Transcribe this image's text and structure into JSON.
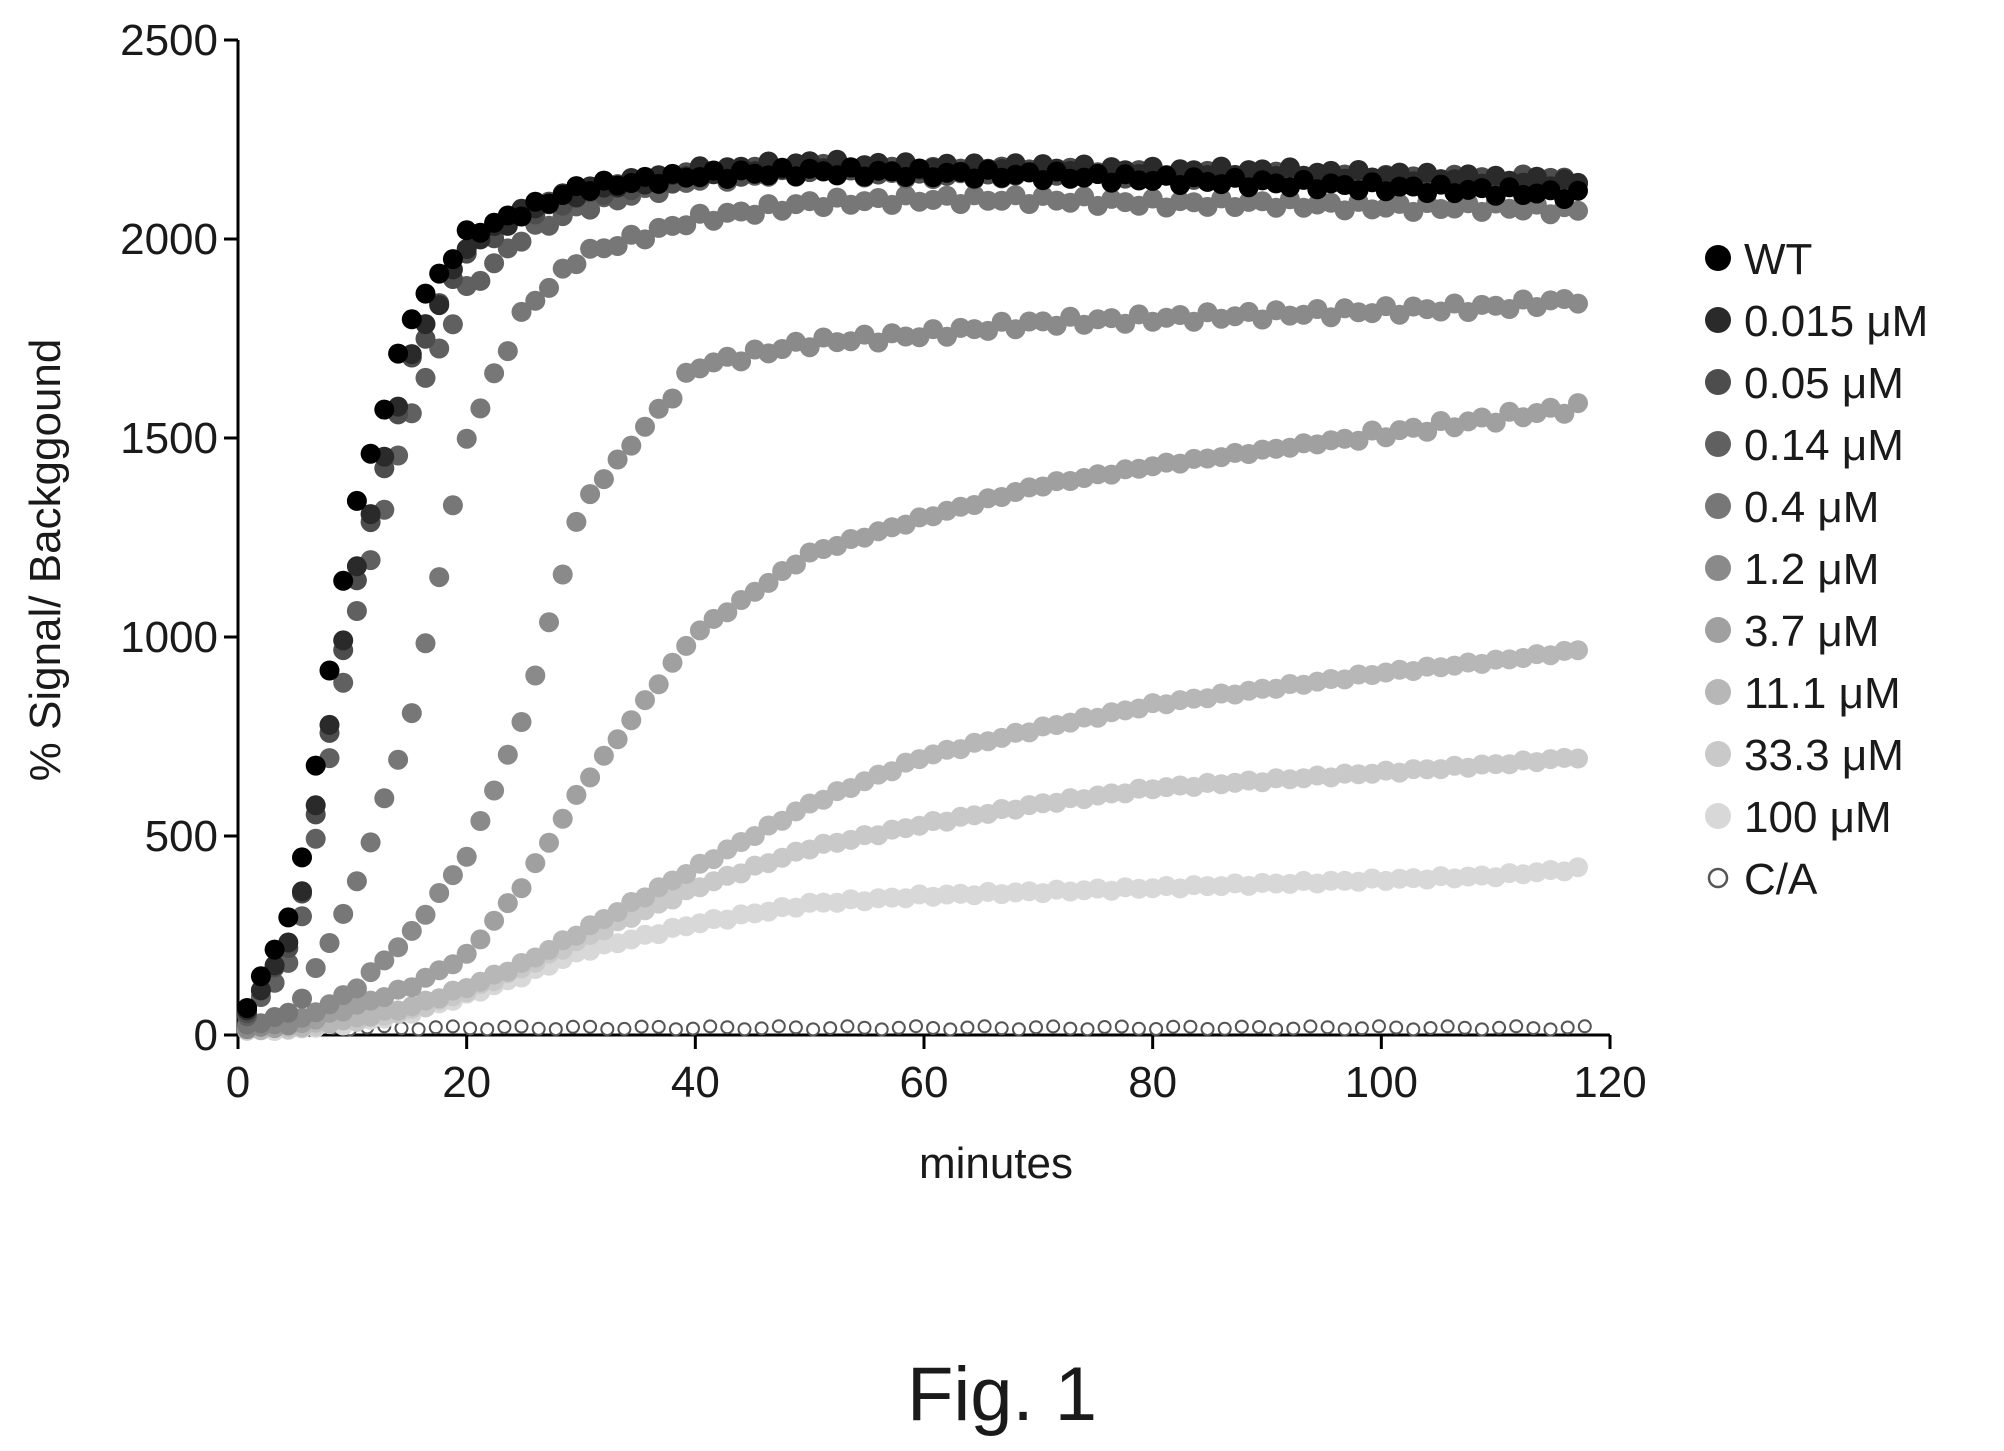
{
  "figure_caption": "Fig. 1",
  "chart_data": {
    "type": "scatter",
    "title": "",
    "xlabel": "minutes",
    "ylabel": "% Signal/ Backggound",
    "xlim": [
      0,
      120
    ],
    "ylim": [
      0,
      2500
    ],
    "xticks": [
      0,
      20,
      40,
      60,
      80,
      100,
      120
    ],
    "yticks": [
      0,
      500,
      1000,
      1500,
      2000,
      2500
    ],
    "grid": false,
    "legend_position": "right",
    "x": [
      0,
      5,
      10,
      15,
      20,
      25,
      30,
      40,
      50,
      60,
      70,
      80,
      90,
      100,
      110,
      118
    ],
    "series": [
      {
        "name": "WT",
        "color": "#000000",
        "marker": "filled",
        "values": [
          20,
          330,
          1300,
          1800,
          2010,
          2070,
          2130,
          2160,
          2170,
          2165,
          2160,
          2150,
          2140,
          2130,
          2120,
          2110
        ]
      },
      {
        "name": "0.015 μM",
        "color": "#2a2a2a",
        "marker": "filled",
        "values": [
          20,
          260,
          1130,
          1700,
          1980,
          2070,
          2120,
          2170,
          2190,
          2180,
          2180,
          2170,
          2170,
          2160,
          2150,
          2140
        ]
      },
      {
        "name": "0.05 μM",
        "color": "#4d4d4d",
        "marker": "filled",
        "values": [
          20,
          250,
          1100,
          1680,
          1970,
          2060,
          2110,
          2160,
          2180,
          2170,
          2170,
          2160,
          2160,
          2150,
          2150,
          2150
        ]
      },
      {
        "name": "0.14 μM",
        "color": "#606060",
        "marker": "filled",
        "values": [
          20,
          200,
          1020,
          1560,
          1870,
          2010,
          2080,
          2150,
          2170,
          2160,
          2160,
          2150,
          2150,
          2140,
          2130,
          2130
        ]
      },
      {
        "name": "0.4 μM",
        "color": "#777777",
        "marker": "filled",
        "values": [
          15,
          60,
          350,
          780,
          1500,
          1820,
          1960,
          2050,
          2090,
          2100,
          2100,
          2090,
          2090,
          2080,
          2080,
          2070
        ]
      },
      {
        "name": "1.2 μM",
        "color": "#8a8a8a",
        "marker": "filled",
        "values": [
          15,
          30,
          110,
          250,
          450,
          800,
          1330,
          1680,
          1740,
          1760,
          1790,
          1800,
          1810,
          1820,
          1830,
          1850
        ]
      },
      {
        "name": "3.7 μM",
        "color": "#a0a0a0",
        "marker": "filled",
        "values": [
          15,
          25,
          70,
          120,
          200,
          380,
          620,
          1010,
          1210,
          1300,
          1380,
          1430,
          1470,
          1510,
          1550,
          1580
        ]
      },
      {
        "name": "11.1 μM",
        "color": "#b7b7b7",
        "marker": "filled",
        "values": [
          12,
          20,
          40,
          70,
          120,
          180,
          260,
          420,
          580,
          700,
          770,
          830,
          870,
          910,
          940,
          970
        ]
      },
      {
        "name": "33.3 μM",
        "color": "#c9c9c9",
        "marker": "filled",
        "values": [
          12,
          18,
          35,
          60,
          110,
          170,
          240,
          370,
          470,
          530,
          580,
          620,
          640,
          660,
          680,
          700
        ]
      },
      {
        "name": "100 μM",
        "color": "#d8d8d8",
        "marker": "filled",
        "values": [
          12,
          15,
          30,
          55,
          100,
          150,
          210,
          280,
          330,
          350,
          360,
          370,
          380,
          390,
          400,
          420
        ]
      },
      {
        "name": "C/A",
        "color": "#555555",
        "marker": "open",
        "values": [
          25,
          20,
          18,
          18,
          18,
          18,
          18,
          18,
          18,
          18,
          18,
          18,
          18,
          18,
          18,
          18
        ]
      }
    ]
  }
}
